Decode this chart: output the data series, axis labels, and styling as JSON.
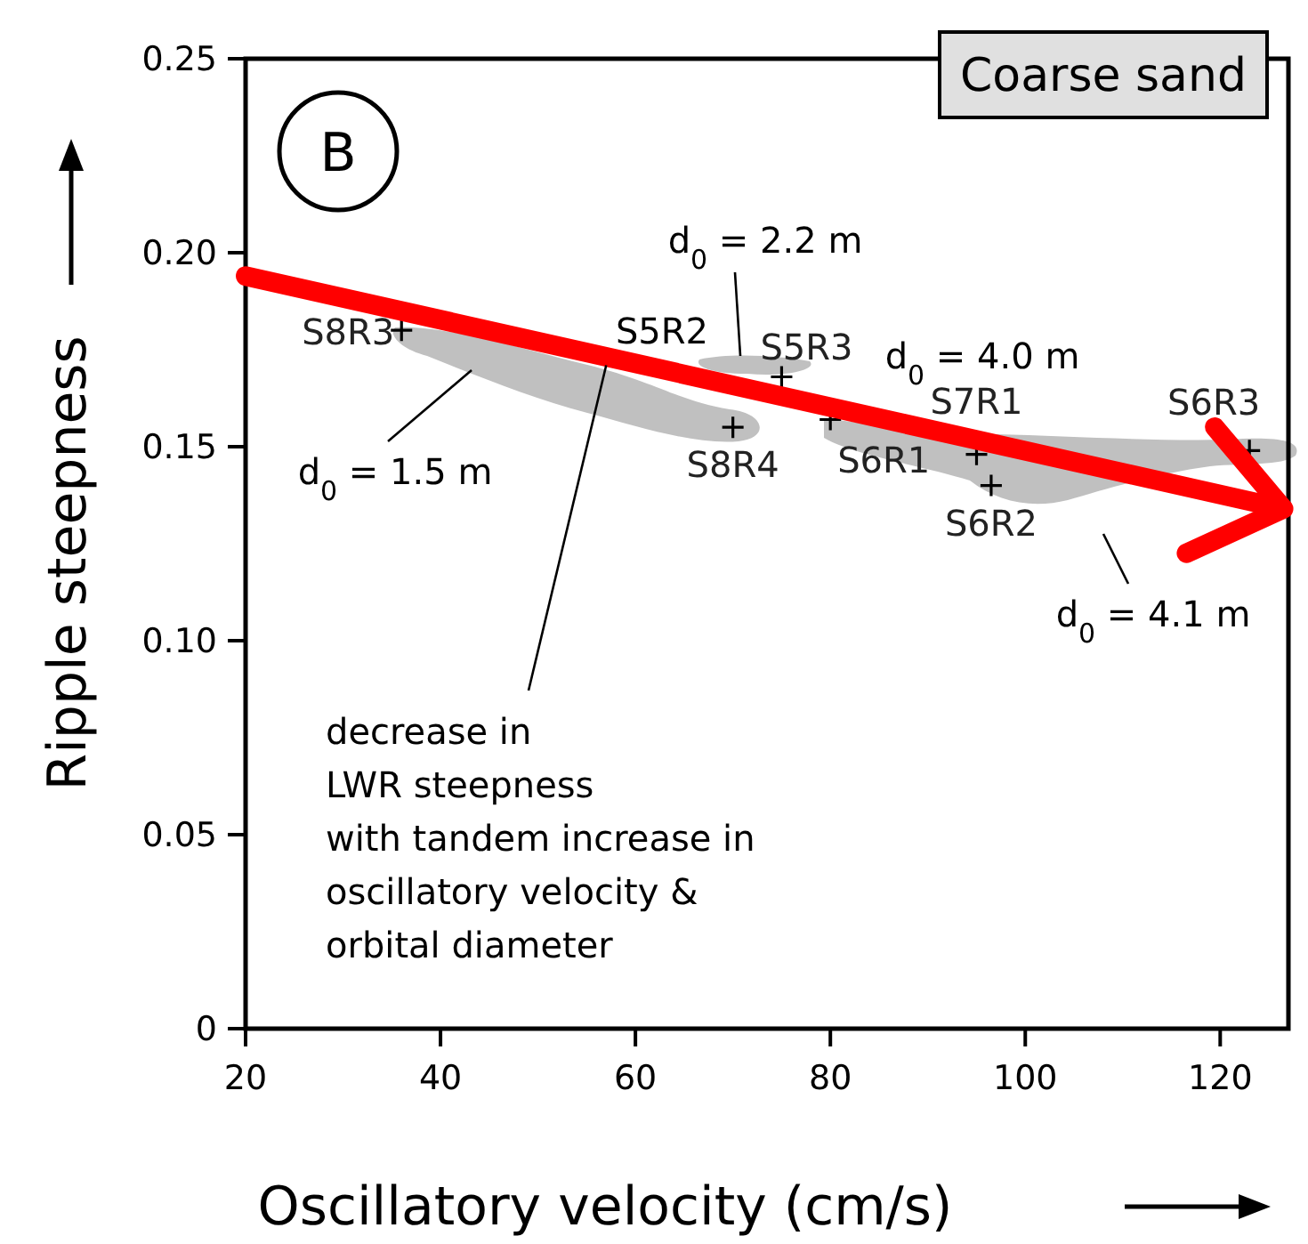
{
  "chart_data": {
    "type": "scatter",
    "xlabel": "Oscillatory velocity (cm/s)",
    "ylabel": "Ripple steepness",
    "xlim": [
      20,
      127
    ],
    "ylim": [
      0,
      0.25
    ],
    "xticks": [
      20,
      40,
      60,
      80,
      100,
      120
    ],
    "yticks": [
      0,
      0.05,
      {
        "value": 0.1,
        "label": "0.10"
      },
      0.15,
      {
        "value": 0.2,
        "label": "0.20"
      },
      0.25
    ],
    "grid": false,
    "series": [
      {
        "name": "S8R3",
        "color": "#000000",
        "marker": "cross",
        "x": [
          36
        ],
        "values": [
          0.18
        ]
      },
      {
        "name": "S8R4",
        "color": "#000000",
        "marker": "cross",
        "x": [
          70
        ],
        "values": [
          0.155
        ]
      },
      {
        "name": "S5R3",
        "color": "#000000",
        "marker": "cross",
        "x": [
          75
        ],
        "values": [
          0.168
        ]
      },
      {
        "name": "S6R1",
        "color": "#000000",
        "marker": "cross",
        "x": [
          80
        ],
        "values": [
          0.157
        ]
      },
      {
        "name": "S7R1",
        "color": "#000000",
        "marker": "cross",
        "x": [
          95
        ],
        "values": [
          0.148
        ]
      },
      {
        "name": "S6R2",
        "color": "#000000",
        "marker": "cross",
        "x": [
          96.5
        ],
        "values": [
          0.14
        ]
      },
      {
        "name": "S6R3",
        "color": "#000000",
        "marker": "cross",
        "x": [
          123
        ],
        "values": [
          0.149
        ]
      },
      {
        "type": "line",
        "color": "#ff0000",
        "line_style": "solid",
        "x": [
          20,
          126.5
        ],
        "values": [
          0.194,
          0.134
        ]
      }
    ],
    "annotations": [
      "Coarse sand",
      "B",
      "S5R2",
      "d$_{0}$ = 2.2 m",
      "d$_{0}$ = 1.5 m",
      "d$_{0}$ = 4.0 m",
      "d$_{0}$ = 4.1 m",
      {
        "text": "decrease in LWR steepness with tandem increase in oscillatory velocity & orbital diameter",
        "x": 57,
        "y": 0.171
      }
    ]
  }
}
